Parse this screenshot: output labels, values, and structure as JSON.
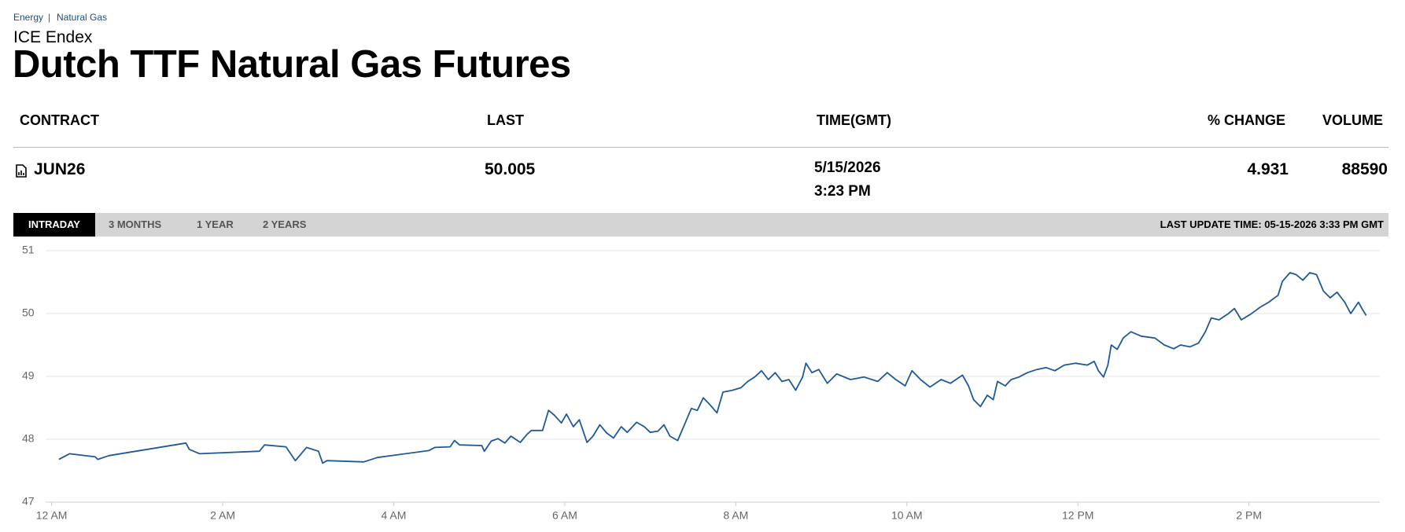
{
  "breadcrumb": [
    "Energy",
    "Natural Gas"
  ],
  "exchange": "ICE Endex",
  "title": "Dutch TTF Natural Gas Futures",
  "table": {
    "headers": [
      "CONTRACT",
      "LAST",
      "TIME(GMT)",
      "% CHANGE",
      "VOLUME"
    ],
    "rows": [
      {
        "contract": "JUN26",
        "last": "50.005",
        "date": "5/15/2026",
        "time": "3:23 PM",
        "change": "4.931",
        "volume": "88590"
      }
    ]
  },
  "tabs": [
    "INTRADAY",
    "3 MONTHS",
    "1 YEAR",
    "2 YEARS"
  ],
  "active_tab": 0,
  "last_update": "LAST UPDATE TIME: 05-15-2026 3:33 PM GMT",
  "chart_data": {
    "type": "line",
    "color": "#1f5a96",
    "grid": true,
    "xlim": [
      -0.07,
      15.53
    ],
    "ylim": [
      47,
      51
    ],
    "xticks": [
      {
        "value": 0,
        "label": "12 AM"
      },
      {
        "value": 2,
        "label": "2 AM"
      },
      {
        "value": 4,
        "label": "4 AM"
      },
      {
        "value": 6,
        "label": "6 AM"
      },
      {
        "value": 8,
        "label": "8 AM"
      },
      {
        "value": 10,
        "label": "10 AM"
      },
      {
        "value": 12,
        "label": "12 PM"
      },
      {
        "value": 14,
        "label": "2 PM"
      }
    ],
    "yticks": [
      47,
      48,
      49,
      50,
      51
    ],
    "x": [
      0.085,
      0.21,
      0.51,
      0.54,
      0.67,
      1.57,
      1.61,
      1.73,
      2.43,
      2.49,
      2.74,
      2.85,
      2.98,
      3.12,
      3.17,
      3.22,
      3.65,
      3.81,
      4.41,
      4.48,
      4.66,
      4.71,
      4.77,
      5.03,
      5.06,
      5.14,
      5.22,
      5.3,
      5.37,
      5.48,
      5.56,
      5.61,
      5.74,
      5.81,
      5.88,
      5.96,
      6.02,
      6.1,
      6.17,
      6.26,
      6.33,
      6.41,
      6.49,
      6.57,
      6.66,
      6.73,
      6.84,
      6.93,
      7.0,
      7.09,
      7.16,
      7.23,
      7.32,
      7.39,
      7.48,
      7.55,
      7.62,
      7.69,
      7.78,
      7.85,
      7.96,
      8.06,
      8.14,
      8.22,
      8.3,
      8.38,
      8.46,
      8.54,
      8.62,
      8.7,
      8.78,
      8.82,
      8.89,
      8.97,
      9.07,
      9.18,
      9.34,
      9.5,
      9.66,
      9.77,
      9.87,
      9.98,
      10.06,
      10.16,
      10.27,
      10.4,
      10.51,
      10.65,
      10.72,
      10.78,
      10.86,
      10.94,
      11.01,
      11.06,
      11.15,
      11.22,
      11.31,
      11.41,
      11.52,
      11.63,
      11.73,
      11.84,
      11.97,
      12.11,
      12.19,
      12.24,
      12.3,
      12.35,
      12.39,
      12.46,
      12.53,
      12.62,
      12.74,
      12.9,
      13.01,
      13.12,
      13.2,
      13.31,
      13.41,
      13.49,
      13.56,
      13.65,
      13.76,
      13.83,
      13.91,
      14.02,
      14.13,
      14.23,
      14.34,
      14.39,
      14.48,
      14.55,
      14.63,
      14.71,
      14.79,
      14.87,
      14.95,
      15.03,
      15.12,
      15.19,
      15.28,
      15.32,
      15.37
    ],
    "values": [
      47.68,
      47.77,
      47.72,
      47.68,
      47.74,
      47.94,
      47.84,
      47.77,
      47.81,
      47.91,
      47.88,
      47.66,
      47.87,
      47.81,
      47.62,
      47.66,
      47.64,
      47.71,
      47.82,
      47.87,
      47.88,
      47.98,
      47.91,
      47.9,
      47.81,
      47.97,
      48.01,
      47.94,
      48.05,
      47.95,
      48.08,
      48.14,
      48.14,
      48.46,
      48.38,
      48.26,
      48.4,
      48.2,
      48.31,
      47.95,
      48.05,
      48.23,
      48.1,
      48.02,
      48.2,
      48.11,
      48.27,
      48.2,
      48.11,
      48.13,
      48.23,
      48.05,
      47.98,
      48.2,
      48.49,
      48.46,
      48.66,
      48.56,
      48.42,
      48.75,
      48.78,
      48.82,
      48.92,
      48.99,
      49.09,
      48.95,
      49.06,
      48.92,
      48.95,
      48.78,
      48.99,
      49.21,
      49.06,
      49.11,
      48.89,
      49.04,
      48.95,
      48.99,
      48.92,
      49.06,
      48.95,
      48.85,
      49.09,
      48.95,
      48.83,
      48.95,
      48.89,
      49.02,
      48.85,
      48.63,
      48.52,
      48.7,
      48.63,
      48.92,
      48.85,
      48.95,
      48.99,
      49.06,
      49.11,
      49.14,
      49.09,
      49.18,
      49.21,
      49.18,
      49.24,
      49.09,
      48.99,
      49.18,
      49.5,
      49.43,
      49.61,
      49.71,
      49.64,
      49.61,
      49.5,
      49.44,
      49.5,
      49.47,
      49.53,
      49.71,
      49.93,
      49.9,
      50.0,
      50.08,
      49.9,
      49.99,
      50.1,
      50.18,
      50.29,
      50.51,
      50.65,
      50.62,
      50.53,
      50.65,
      50.62,
      50.36,
      50.25,
      50.34,
      50.18,
      50.0,
      50.18,
      50.08,
      49.97
    ]
  }
}
